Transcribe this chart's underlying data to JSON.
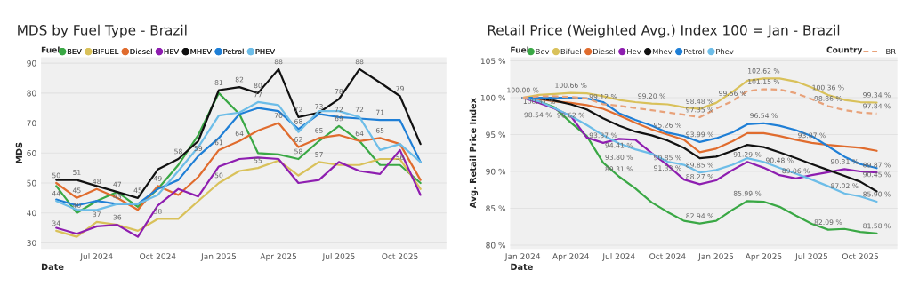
{
  "chart_data": [
    {
      "type": "line",
      "title": "MDS by Fuel Type - Brazil",
      "xlabel": "Date",
      "ylabel": "MDS",
      "legend_title": "Fuel",
      "legend": "top left",
      "grid": "y",
      "marker": "none",
      "x": [
        "2024-05",
        "2024-06",
        "2024-07",
        "2024-08",
        "2024-09",
        "2024-10",
        "2024-11",
        "2024-12",
        "2025-01",
        "2025-02",
        "2025-03",
        "2025-04",
        "2025-05",
        "2025-06",
        "2025-07",
        "2025-08",
        "2025-09",
        "2025-10",
        "2025-11"
      ],
      "xlim": [
        "2024-04-08",
        "2025-12-10"
      ],
      "ylim": [
        28,
        92
      ],
      "xticks": [
        {
          "value": "2024-07-01",
          "label": "Jul 2024"
        },
        {
          "value": "2024-10-01",
          "label": "Oct 2024"
        },
        {
          "value": "2025-01-01",
          "label": "Jan 2025"
        },
        {
          "value": "2025-04-01",
          "label": "Apr 2025"
        },
        {
          "value": "2025-07-01",
          "label": "Jul 2025"
        },
        {
          "value": "2025-10-01",
          "label": "Oct 2025"
        }
      ],
      "yticks": [
        30,
        40,
        50,
        60,
        70,
        80,
        90
      ],
      "series": [
        {
          "name": "BEV",
          "color": "#3aa845",
          "values": [
            49,
            40,
            44,
            47,
            42,
            48,
            56,
            66,
            80,
            73,
            60,
            59.5,
            58,
            64,
            69,
            64,
            56,
            56,
            50
          ],
          "value_labels": [
            null,
            "40",
            null,
            null,
            null,
            null,
            null,
            null,
            null,
            null,
            null,
            null,
            "58",
            null,
            "69",
            null,
            null,
            "56",
            null
          ]
        },
        {
          "name": "BIFUEL",
          "color": "#d9c15a",
          "values": [
            34,
            32,
            37,
            36,
            34,
            38,
            38,
            44,
            50,
            54,
            55,
            57.5,
            52.5,
            57,
            56,
            56,
            58,
            58,
            48
          ],
          "value_labels": [
            "34",
            null,
            "37",
            "36",
            null,
            "38",
            null,
            null,
            "50",
            null,
            "55",
            null,
            null,
            "57",
            null,
            null,
            null,
            null,
            null
          ]
        },
        {
          "name": "Diesel",
          "color": "#e06c2e",
          "values": [
            50,
            45,
            48,
            45,
            41,
            49,
            46,
            52,
            61,
            64,
            67.5,
            70,
            62,
            65,
            66,
            64,
            65,
            63,
            51
          ],
          "value_labels": [
            "50",
            "45",
            "48",
            null,
            null,
            "49",
            null,
            null,
            "61",
            "64",
            null,
            "70",
            "62",
            "65",
            null,
            "64",
            "65",
            null,
            null
          ]
        },
        {
          "name": "HEV",
          "color": "#8e1eb0",
          "values": [
            35,
            33,
            35.5,
            36,
            32,
            42.5,
            48,
            45.5,
            55.5,
            58,
            58.5,
            58,
            50,
            51,
            57,
            54,
            53,
            61,
            46
          ]
        },
        {
          "name": "MHEV",
          "color": "#111111",
          "values": [
            51,
            51,
            49,
            47,
            45,
            54.5,
            58,
            64,
            81,
            82,
            80,
            88,
            72,
            73.5,
            78,
            88,
            83.5,
            79,
            63
          ],
          "value_labels": [
            null,
            "51",
            null,
            "47",
            "45",
            null,
            "58",
            null,
            "81",
            "82",
            "80",
            "88",
            "72",
            null,
            "78",
            "88",
            null,
            "79",
            null
          ]
        },
        {
          "name": "Petrol",
          "color": "#1f7fd6",
          "values": [
            44.5,
            42.5,
            44,
            43,
            43,
            48,
            51,
            59,
            65,
            73,
            75,
            74,
            68,
            73,
            72,
            71.5,
            71,
            71,
            57
          ],
          "value_labels": [
            null,
            null,
            null,
            null,
            null,
            null,
            null,
            "59",
            null,
            null,
            null,
            null,
            "68",
            "73",
            "72",
            null,
            "71",
            null,
            null
          ]
        },
        {
          "name": "PHEV",
          "color": "#6dbde8",
          "values": [
            44,
            41,
            41,
            43,
            43,
            46,
            54,
            62,
            72.5,
            73.5,
            77,
            76,
            67,
            74,
            74,
            72,
            61,
            63,
            57
          ],
          "value_labels": [
            "44",
            null,
            null,
            "43",
            null,
            null,
            null,
            null,
            null,
            null,
            "77",
            null,
            null,
            null,
            null,
            "72",
            null,
            null,
            null
          ]
        }
      ]
    },
    {
      "type": "line",
      "title": "Retail Price (Weighted Avg.) Index 100 = Jan - Brazil",
      "xlabel": "Date",
      "ylabel": "Avg. Retail Price Index",
      "legend_title": "Fuel",
      "legend": "top left",
      "grid": "y",
      "marker": "none",
      "annotations": [
        "Country"
      ],
      "x": [
        "2024-01",
        "2024-02",
        "2024-03",
        "2024-04",
        "2024-05",
        "2024-06",
        "2024-07",
        "2024-08",
        "2024-09",
        "2024-10",
        "2024-11",
        "2024-12",
        "2025-01",
        "2025-02",
        "2025-03",
        "2025-04",
        "2025-05",
        "2025-06",
        "2025-07",
        "2025-08",
        "2025-09",
        "2025-10",
        "2025-11"
      ],
      "xlim": [
        "2023-12-08",
        "2025-12-10"
      ],
      "ylim": [
        79.5,
        105.5
      ],
      "xticks": [
        {
          "value": "2024-01-01",
          "label": "Jan 2024"
        },
        {
          "value": "2024-04-01",
          "label": "Apr 2024"
        },
        {
          "value": "2024-07-01",
          "label": "Jul 2024"
        },
        {
          "value": "2024-10-01",
          "label": "Oct 2024"
        },
        {
          "value": "2025-01-01",
          "label": "Jan 2025"
        },
        {
          "value": "2025-04-01",
          "label": "Apr 2025"
        },
        {
          "value": "2025-07-01",
          "label": "Jul 2025"
        },
        {
          "value": "2025-10-01",
          "label": "Oct 2025"
        }
      ],
      "yticks": [
        {
          "value": 80,
          "label": "80 %"
        },
        {
          "value": 85,
          "label": "85 %"
        },
        {
          "value": 90,
          "label": "90 %"
        },
        {
          "value": 95,
          "label": "95 %"
        },
        {
          "value": 100,
          "label": "100 %"
        },
        {
          "value": 105,
          "label": "105 %"
        }
      ],
      "series": [
        {
          "name": "Bev",
          "color": "#3aa845",
          "values": [
            100,
            99.5,
            98.7,
            96.62,
            94.8,
            91.2,
            89.31,
            87.7,
            85.8,
            84.5,
            83.3,
            82.94,
            83.3,
            84.8,
            85.99,
            85.9,
            85.2,
            84.0,
            82.9,
            82.09,
            82.2,
            81.8,
            81.58
          ],
          "value_labels": [
            null,
            null,
            null,
            "96.62 %",
            null,
            null,
            "89.31 %",
            null,
            null,
            null,
            null,
            "82.94 %",
            null,
            null,
            "85.99 %",
            null,
            null,
            null,
            null,
            "82.09 %",
            null,
            null,
            "81.58 %"
          ]
        },
        {
          "name": "Bifuel",
          "color": "#d9c15a",
          "values": [
            100.0,
            100.37,
            100.5,
            100.66,
            100.6,
            100.2,
            99.7,
            99.4,
            99.2,
            99.1,
            98.7,
            98.48,
            99.3,
            100.8,
            102.3,
            102.62,
            102.6,
            102.2,
            101.4,
            100.36,
            99.7,
            99.4,
            99.34
          ],
          "value_labels": [
            "100.00 %",
            "100.37 %",
            null,
            "100.66 %",
            null,
            null,
            null,
            null,
            "99.20 %",
            null,
            null,
            "98.48 %",
            null,
            null,
            null,
            "102.62 %",
            null,
            null,
            null,
            "100.36 %",
            null,
            null,
            "99.34 %"
          ]
        },
        {
          "name": "Diesel",
          "color": "#e06c2e",
          "values": [
            100,
            99.8,
            99.5,
            99.3,
            99.0,
            98.5,
            97.6,
            96.6,
            95.7,
            95.0,
            94.3,
            92.6,
            93.1,
            94.1,
            95.2,
            95.2,
            94.8,
            94.3,
            93.87,
            93.6,
            93.4,
            93.2,
            92.8
          ],
          "value_labels": [
            null,
            null,
            null,
            null,
            null,
            null,
            null,
            null,
            null,
            null,
            null,
            null,
            null,
            null,
            null,
            null,
            null,
            null,
            "93.87 %",
            null,
            null,
            null,
            null
          ]
        },
        {
          "name": "Hev",
          "color": "#8e1eb0",
          "values": [
            100,
            99.3,
            98.54,
            97.5,
            94.6,
            93.87,
            94.41,
            94.3,
            92.5,
            90.85,
            88.9,
            88.27,
            88.8,
            90.2,
            91.29,
            90.5,
            89.5,
            89.06,
            89.5,
            89.9,
            90.31,
            90.0,
            89.87
          ],
          "value_labels": [
            null,
            null,
            "98.54 %",
            null,
            null,
            "93.87 %",
            "94.41 %",
            null,
            null,
            "90.85 %",
            null,
            "88.27 %",
            null,
            null,
            "91.29 %",
            null,
            null,
            "89.06 %",
            null,
            null,
            "90.31 %",
            null,
            "89.87 %"
          ]
        },
        {
          "name": "Mhev",
          "color": "#111111",
          "values": [
            100,
            99.9,
            99.6,
            99.1,
            98.4,
            97.2,
            96.2,
            95.4,
            94.9,
            94.2,
            93.2,
            91.8,
            92.0,
            92.8,
            93.6,
            93.3,
            92.6,
            91.8,
            91.0,
            90.2,
            89.4,
            88.6,
            87.3
          ]
        },
        {
          "name": "Petrol",
          "color": "#1f7fd6",
          "values": [
            100.0,
            100,
            100,
            100,
            99.9,
            99.4,
            97.9,
            97.0,
            96.2,
            95.26,
            94.8,
            93.99,
            94.5,
            95.3,
            96.4,
            96.54,
            96.2,
            95.6,
            94.8,
            93.4,
            92.0,
            91.0,
            90.45
          ],
          "value_labels": [
            null,
            null,
            null,
            null,
            null,
            null,
            null,
            null,
            null,
            "95.26 %",
            null,
            "93.99 %",
            null,
            null,
            null,
            "96.54 %",
            null,
            null,
            null,
            null,
            null,
            null,
            "90.45 %"
          ]
        },
        {
          "name": "Phev",
          "color": "#6dbde8",
          "values": [
            100,
            99.5,
            98.6,
            97.5,
            96.3,
            94.9,
            93.8,
            93.0,
            92.4,
            91.33,
            90.9,
            89.85,
            90.2,
            90.9,
            91.8,
            91.3,
            90.48,
            89.7,
            88.9,
            88.0,
            87.02,
            86.6,
            85.9
          ],
          "value_labels": [
            null,
            null,
            null,
            null,
            null,
            null,
            "93.80 %",
            null,
            null,
            "91.33 %",
            null,
            "89.85 %",
            null,
            null,
            null,
            null,
            "90.48 %",
            null,
            null,
            null,
            "87.02 %",
            null,
            "85.90 %"
          ]
        },
        {
          "name": "BR",
          "color": "#e8a27a",
          "line_style": "dashed",
          "values": [
            100,
            100.2,
            100.2,
            100.1,
            99.9,
            99.12,
            98.9,
            98.6,
            98.3,
            98.0,
            97.7,
            97.35,
            98.5,
            99.56,
            100.9,
            101.15,
            101.1,
            100.6,
            99.8,
            98.86,
            98.3,
            98.0,
            97.84
          ],
          "value_labels": [
            null,
            null,
            null,
            null,
            null,
            "99.12 %",
            null,
            null,
            null,
            null,
            null,
            "97.35 %",
            null,
            "99.56 %",
            null,
            "101.15 %",
            null,
            null,
            null,
            "98.86 %",
            null,
            null,
            "97.84 %"
          ]
        }
      ]
    }
  ]
}
